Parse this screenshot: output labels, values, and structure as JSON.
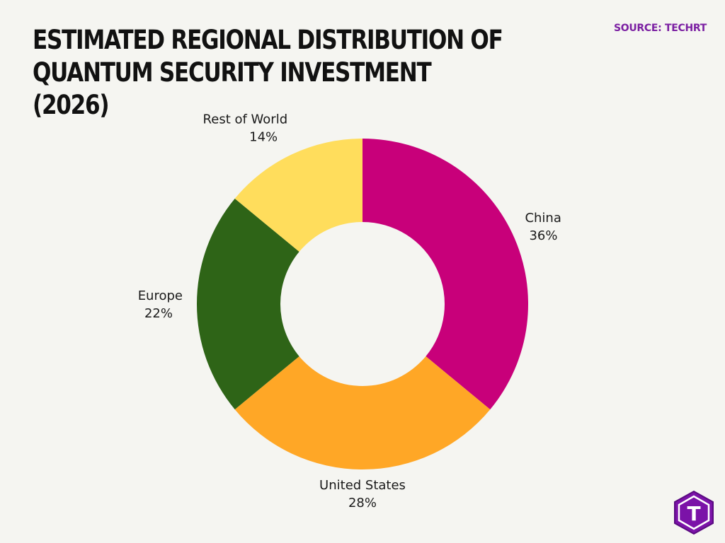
{
  "header": {
    "title": "ESTIMATED REGIONAL DISTRIBUTION OF QUANTUM SECURITY INVESTMENT (2026)",
    "source": "SOURCE: TECHRT"
  },
  "logo": {
    "icon": "techrt-logo-icon",
    "text": "T"
  },
  "chart_data": {
    "type": "pie",
    "style": "donut",
    "title": "ESTIMATED REGIONAL DISTRIBUTION OF QUANTUM SECURITY INVESTMENT (2026)",
    "categories": [
      "China",
      "United States",
      "Europe",
      "Rest of World"
    ],
    "values": [
      36,
      28,
      22,
      14
    ],
    "labels": [
      "36%",
      "28%",
      "22%",
      "14%"
    ],
    "colors": [
      "#c8007a",
      "#ffa726",
      "#2e6417",
      "#ffdd5c"
    ],
    "unit": "%",
    "legend": "none"
  }
}
